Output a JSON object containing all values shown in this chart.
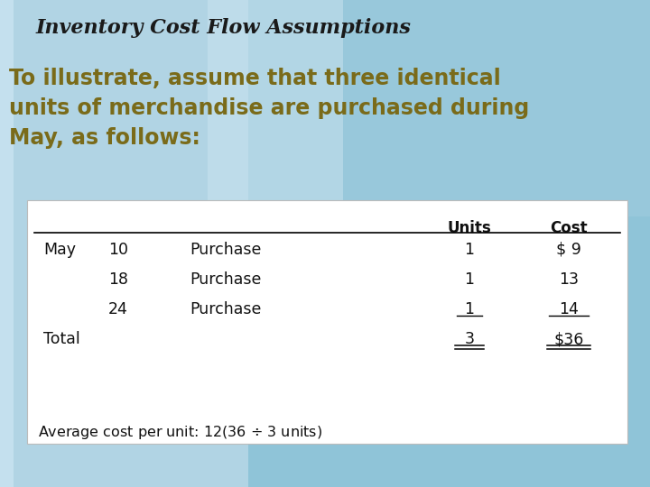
{
  "title": "Inventory Cost Flow Assumptions",
  "subtitle_line1": "To illustrate, assume that three identical",
  "subtitle_line2": "units of merchandise are purchased during",
  "subtitle_line3": "May, as follows:",
  "bg_base": "#87bfd6",
  "bg_light_strip": "#c5dff0",
  "bg_lighter": "#daeef8",
  "table_bg": "#ffffff",
  "title_color": "#1a1a1a",
  "subtitle_color": "#7a6b1a",
  "table_text_color": "#111111",
  "footnote": "Average cost per unit: $12 ($36 ÷ 3 units)"
}
